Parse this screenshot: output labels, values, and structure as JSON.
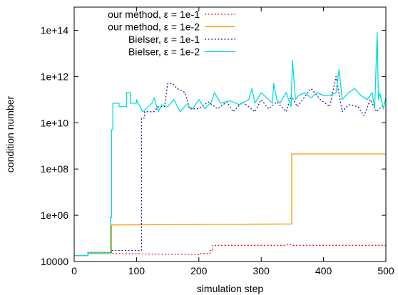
{
  "chart_data": {
    "type": "line",
    "xlabel": "simulation step",
    "ylabel": "condition number",
    "xlim": [
      0,
      500
    ],
    "ylim": [
      10000,
      1000000000000000.0
    ],
    "y_scale": "log",
    "x_ticks": [
      0,
      100,
      200,
      300,
      400,
      500
    ],
    "y_ticks": [
      {
        "value": 10000,
        "label": "10000"
      },
      {
        "value": 1000000.0,
        "label": "1e+06"
      },
      {
        "value": 100000000.0,
        "label": "1e+08"
      },
      {
        "value": 10000000000.0,
        "label": "1e+10"
      },
      {
        "value": 1000000000000.0,
        "label": "1e+12"
      },
      {
        "value": 100000000000000.0,
        "label": "1e+14"
      }
    ],
    "grid": false,
    "legend_position": "top-right",
    "series": [
      {
        "name": "our method, ε = 1e-1",
        "color": "#e41a1c",
        "dash": "dotted",
        "x": [
          0,
          22,
          22,
          60,
          60,
          200,
          200,
          218,
          218,
          222,
          222,
          340,
          345,
          350,
          360,
          500
        ],
        "y": [
          18000,
          18000,
          25000,
          25000,
          22000,
          20000,
          22000,
          22000,
          30000,
          30000,
          50000,
          50000,
          57000,
          50000,
          50000,
          50000
        ]
      },
      {
        "name": "our method, ε = 1e-2",
        "color": "#ff9900",
        "dash": "solid",
        "x": [
          0,
          22,
          22,
          58,
          58,
          60,
          60,
          349,
          349,
          500
        ],
        "y": [
          18000,
          18000,
          22000,
          22000,
          25000,
          25000,
          380000,
          420000,
          450000000,
          450000000
        ]
      },
      {
        "name": "Bielser, ε = 1e-1",
        "color": "#1a1aa8",
        "dash": "dotted",
        "x": [
          0,
          22,
          22,
          60,
          60,
          108,
          108,
          113,
          113,
          128,
          135,
          145,
          150,
          158,
          165,
          178,
          185,
          200,
          215,
          230,
          245,
          255,
          270,
          290,
          300,
          312,
          325,
          340,
          348,
          358,
          380,
          395,
          410,
          420,
          430,
          440,
          455,
          465,
          475,
          485,
          500
        ],
        "y": [
          18000,
          18000,
          25000,
          25000,
          30000,
          30000,
          16000000000.0,
          16000000000.0,
          30000000000.0,
          30000000000.0,
          50000000000.0,
          50000000000.0,
          500000000000.0,
          500000000000.0,
          300000000000.0,
          200000000000.0,
          40000000000.0,
          40000000000.0,
          80000000000.0,
          40000000000.0,
          80000000000.0,
          30000000000.0,
          80000000000.0,
          30000000000.0,
          100000000000.0,
          40000000000.0,
          80000000000.0,
          30000000000.0,
          150000000000.0,
          50000000000.0,
          300000000000.0,
          100000000000.0,
          50000000000.0,
          1000000000000.0,
          30000000000.0,
          60000000000.0,
          50000000000.0,
          20000000000.0,
          100000000000.0,
          30000000000.0,
          80000000000.0
        ]
      },
      {
        "name": "Bielser, ε = 1e-2",
        "color": "#00dede",
        "dash": "solid",
        "x": [
          0,
          22,
          22,
          58,
          58,
          60,
          60,
          62,
          62,
          72,
          72,
          84,
          84,
          90,
          90,
          100,
          100,
          110,
          115,
          125,
          128,
          135,
          140,
          150,
          160,
          170,
          180,
          190,
          200,
          210,
          220,
          225,
          235,
          250,
          265,
          280,
          285,
          290,
          300,
          318,
          320,
          325,
          330,
          340,
          348,
          350,
          355,
          360,
          370,
          380,
          390,
          400,
          410,
          420,
          425,
          430,
          440,
          450,
          460,
          470,
          478,
          482,
          486,
          488,
          490,
          496,
          500
        ],
        "y": [
          18000,
          18000,
          24000,
          24000,
          800000,
          800000,
          5000000000.0,
          5000000000.0,
          70000000000.0,
          70000000000.0,
          50000000000.0,
          50000000000.0,
          200000000000.0,
          200000000000.0,
          70000000000.0,
          70000000000.0,
          100000000000.0,
          30000000000.0,
          40000000000.0,
          70000000000.0,
          120000000000.0,
          30000000000.0,
          60000000000.0,
          50000000000.0,
          100000000000.0,
          30000000000.0,
          60000000000.0,
          40000000000.0,
          100000000000.0,
          40000000000.0,
          80000000000.0,
          200000000000.0,
          70000000000.0,
          90000000000.0,
          60000000000.0,
          100000000000.0,
          300000000000.0,
          70000000000.0,
          200000000000.0,
          70000000000.0,
          500000000000.0,
          100000000000.0,
          70000000000.0,
          200000000000.0,
          50000000000.0,
          5000000000000.0,
          100000000000.0,
          150000000000.0,
          200000000000.0,
          120000000000.0,
          200000000000.0,
          150000000000.0,
          150000000000.0,
          200000000000.0,
          2000000000000.0,
          100000000000.0,
          200000000000.0,
          300000000000.0,
          150000000000.0,
          100000000000.0,
          200000000000.0,
          40000000000.0,
          80000000000000.0,
          100000000000.0,
          200000000000.0,
          40000000000.0,
          130000000000.0
        ]
      }
    ]
  }
}
